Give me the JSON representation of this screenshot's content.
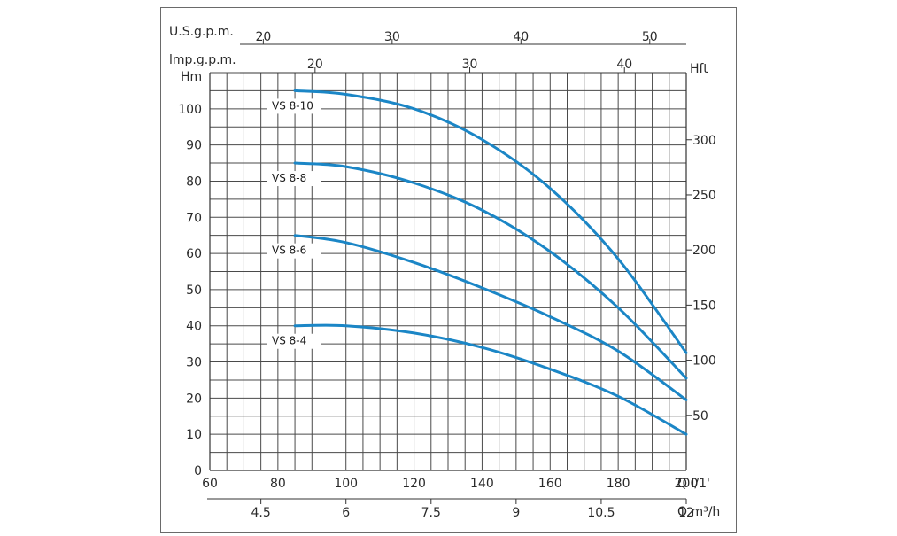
{
  "chart_data": {
    "type": "line",
    "colors": {
      "curve": "#1b86c6",
      "grid": "#4a4a4a",
      "axis": "#333333"
    },
    "grid": true,
    "x_primary": {
      "label": "Q l/1'",
      "range": [
        60,
        200
      ],
      "ticks": [
        60,
        80,
        100,
        120,
        140,
        160,
        180,
        200
      ]
    },
    "x_m3h": {
      "label": "Q m³/h",
      "ticks": [
        4.5,
        6,
        7.5,
        9,
        10.5,
        12
      ]
    },
    "x_usgpm": {
      "label": "U.S.g.p.m.",
      "ticks": [
        20,
        30,
        40,
        50
      ]
    },
    "x_impgpm": {
      "label": "lmp.g.p.m.",
      "ticks": [
        20,
        30,
        40
      ]
    },
    "y_left": {
      "label": "Hm",
      "range": [
        0,
        110
      ],
      "ticks": [
        0,
        10,
        20,
        30,
        40,
        50,
        60,
        70,
        80,
        90,
        100
      ]
    },
    "y_right": {
      "label": "Hft",
      "ticks": [
        50,
        100,
        150,
        200,
        250,
        300
      ]
    },
    "series": [
      {
        "name": "VS 8-10",
        "x": [
          85,
          100,
          120,
          140,
          160,
          180,
          200
        ],
        "y": [
          105,
          104,
          100,
          91.5,
          78,
          58.5,
          32.5
        ]
      },
      {
        "name": "VS 8-8",
        "x": [
          85,
          100,
          120,
          140,
          160,
          180,
          200
        ],
        "y": [
          85,
          84,
          79.5,
          72,
          60.5,
          45,
          25.5
        ]
      },
      {
        "name": "VS 8-6",
        "x": [
          85,
          100,
          120,
          140,
          160,
          180,
          200
        ],
        "y": [
          65,
          63,
          57.5,
          50.5,
          42.5,
          33,
          19.5
        ]
      },
      {
        "name": "VS 8-4",
        "x": [
          85,
          100,
          120,
          140,
          160,
          180,
          200
        ],
        "y": [
          40,
          40,
          38,
          34,
          28,
          20.5,
          10
        ]
      }
    ]
  }
}
